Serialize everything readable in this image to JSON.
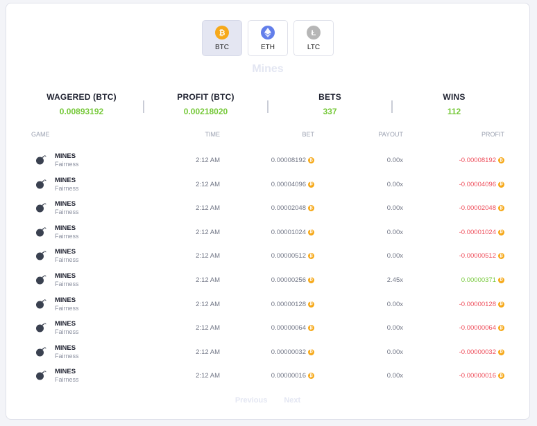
{
  "coins": [
    {
      "label": "BTC",
      "color": "#f6a91a",
      "icon": "bitcoin-icon",
      "active": true
    },
    {
      "label": "ETH",
      "color": "#627eea",
      "icon": "ethereum-icon",
      "active": false
    },
    {
      "label": "LTC",
      "color": "#b6b6b6",
      "icon": "litecoin-icon",
      "active": false
    }
  ],
  "title": "Mines",
  "stats": {
    "wagered": {
      "label": "WAGERED (BTC)",
      "value": "0.00893192"
    },
    "profit": {
      "label": "PROFIT (BTC)",
      "value": "0.00218020"
    },
    "bets": {
      "label": "BETS",
      "value": "337"
    },
    "wins": {
      "label": "WINS",
      "value": "112"
    }
  },
  "columns": {
    "game": "GAME",
    "time": "TIME",
    "bet": "BET",
    "payout": "PAYOUT",
    "profit": "PROFIT"
  },
  "rows": [
    {
      "game": "MINES",
      "sub": "Fairness",
      "time": "2:12 AM",
      "bet": "0.00008192",
      "payout": "0.00x",
      "profit": "-0.00008192",
      "positive": false
    },
    {
      "game": "MINES",
      "sub": "Fairness",
      "time": "2:12 AM",
      "bet": "0.00004096",
      "payout": "0.00x",
      "profit": "-0.00004096",
      "positive": false
    },
    {
      "game": "MINES",
      "sub": "Fairness",
      "time": "2:12 AM",
      "bet": "0.00002048",
      "payout": "0.00x",
      "profit": "-0.00002048",
      "positive": false
    },
    {
      "game": "MINES",
      "sub": "Fairness",
      "time": "2:12 AM",
      "bet": "0.00001024",
      "payout": "0.00x",
      "profit": "-0.00001024",
      "positive": false
    },
    {
      "game": "MINES",
      "sub": "Fairness",
      "time": "2:12 AM",
      "bet": "0.00000512",
      "payout": "0.00x",
      "profit": "-0.00000512",
      "positive": false
    },
    {
      "game": "MINES",
      "sub": "Fairness",
      "time": "2:12 AM",
      "bet": "0.00000256",
      "payout": "2.45x",
      "profit": "0.00000371",
      "positive": true
    },
    {
      "game": "MINES",
      "sub": "Fairness",
      "time": "2:12 AM",
      "bet": "0.00000128",
      "payout": "0.00x",
      "profit": "-0.00000128",
      "positive": false
    },
    {
      "game": "MINES",
      "sub": "Fairness",
      "time": "2:12 AM",
      "bet": "0.00000064",
      "payout": "0.00x",
      "profit": "-0.00000064",
      "positive": false
    },
    {
      "game": "MINES",
      "sub": "Fairness",
      "time": "2:12 AM",
      "bet": "0.00000032",
      "payout": "0.00x",
      "profit": "-0.00000032",
      "positive": false
    },
    {
      "game": "MINES",
      "sub": "Fairness",
      "time": "2:12 AM",
      "bet": "0.00000016",
      "payout": "0.00x",
      "profit": "-0.00000016",
      "positive": false
    }
  ],
  "pager": {
    "previous": "Previous",
    "next": "Next"
  }
}
